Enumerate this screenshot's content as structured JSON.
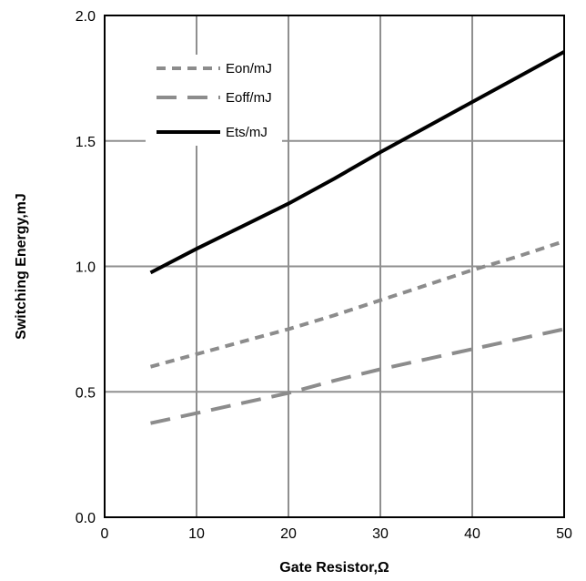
{
  "chart_data": {
    "type": "line",
    "title": "",
    "xlabel": "Gate Resistor,Ω",
    "ylabel": "Switching Energy,mJ",
    "xlim": [
      0,
      50
    ],
    "ylim": [
      0.0,
      2.0
    ],
    "xticks": [
      0,
      10,
      20,
      30,
      40,
      50
    ],
    "xtick_labels": [
      "0",
      "10",
      "20",
      "30",
      "40",
      "50"
    ],
    "yticks": [
      0.0,
      0.5,
      1.0,
      1.5,
      2.0
    ],
    "ytick_labels": [
      "0.0",
      "0.5",
      "1.0",
      "1.5",
      "2.0"
    ],
    "grid": true,
    "legend_position": "top-left",
    "series": [
      {
        "name": "Eon/mJ",
        "style": "short-dash",
        "color": "#8c8c8c",
        "x": [
          5,
          10,
          15,
          20,
          25,
          30,
          35,
          40,
          45,
          50
        ],
        "y": [
          0.6,
          0.65,
          0.7,
          0.75,
          0.805,
          0.865,
          0.925,
          0.985,
          1.04,
          1.1
        ]
      },
      {
        "name": "Eoff/mJ",
        "style": "long-dash",
        "color": "#8c8c8c",
        "x": [
          5,
          10,
          15,
          20,
          25,
          30,
          35,
          40,
          45,
          50
        ],
        "y": [
          0.375,
          0.415,
          0.455,
          0.495,
          0.545,
          0.59,
          0.63,
          0.67,
          0.71,
          0.75
        ]
      },
      {
        "name": "Ets/mJ",
        "style": "solid",
        "color": "#000000",
        "x": [
          5,
          10,
          15,
          20,
          25,
          30,
          35,
          40,
          45,
          50
        ],
        "y": [
          0.975,
          1.07,
          1.16,
          1.25,
          1.35,
          1.455,
          1.555,
          1.655,
          1.755,
          1.855
        ]
      }
    ]
  }
}
